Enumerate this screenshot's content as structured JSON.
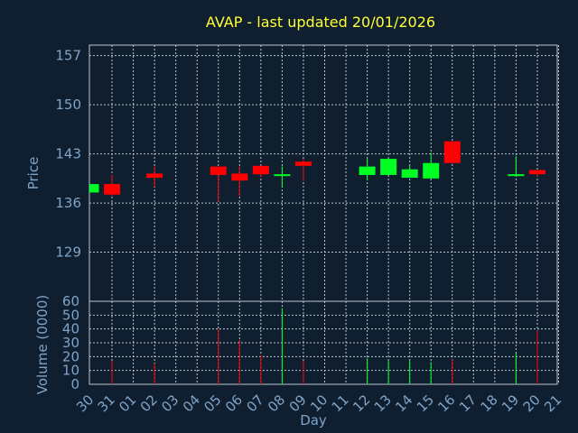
{
  "chart_data": {
    "type": "candlestick",
    "title": "AVAP - last updated 20/01/2026",
    "xlabel": "Day",
    "x_ticks": [
      "30",
      "31",
      "01",
      "02",
      "03",
      "04",
      "05",
      "06",
      "07",
      "08",
      "09",
      "10",
      "11",
      "12",
      "13",
      "14",
      "15",
      "16",
      "17",
      "18",
      "19",
      "20",
      "21"
    ],
    "price_axis": {
      "label": "Price",
      "ticks": [
        129,
        136,
        143,
        150,
        157
      ],
      "ylim": [
        122,
        158.5
      ]
    },
    "volume_axis": {
      "label": "Volume (0000)",
      "ticks": [
        0,
        10,
        20,
        30,
        40,
        50,
        60
      ],
      "ylim": [
        0,
        60
      ]
    },
    "grid": true,
    "colors": {
      "up": "#00ff22",
      "down": "#ff0000",
      "title": "#ffff33",
      "axis_text": "#7fa4c8",
      "background": "#0f1f30"
    },
    "candles": [
      {
        "day": "30",
        "open": 137.5,
        "high": 138.7,
        "low": 137.5,
        "close": 138.7,
        "volume": 0
      },
      {
        "day": "31",
        "open": 138.7,
        "high": 140.0,
        "low": 137.0,
        "close": 137.2,
        "volume": 17
      },
      {
        "day": "02",
        "open": 140.2,
        "high": 141.2,
        "low": 138.3,
        "close": 139.6,
        "volume": 15
      },
      {
        "day": "05",
        "open": 141.2,
        "high": 141.2,
        "low": 136.2,
        "close": 140.0,
        "volume": 40
      },
      {
        "day": "06",
        "open": 140.2,
        "high": 141.2,
        "low": 137.0,
        "close": 139.2,
        "volume": 32
      },
      {
        "day": "07",
        "open": 141.3,
        "high": 141.3,
        "low": 139.7,
        "close": 140.1,
        "volume": 21
      },
      {
        "day": "08",
        "open": 139.9,
        "high": 141.2,
        "low": 138.3,
        "close": 140.1,
        "volume": 55
      },
      {
        "day": "09",
        "open": 141.9,
        "high": 142.3,
        "low": 139.1,
        "close": 141.3,
        "volume": 17
      },
      {
        "day": "12",
        "open": 140.0,
        "high": 142.4,
        "low": 139.2,
        "close": 141.2,
        "volume": 19
      },
      {
        "day": "13",
        "open": 140.0,
        "high": 142.3,
        "low": 140.0,
        "close": 142.3,
        "volume": 17
      },
      {
        "day": "14",
        "open": 139.6,
        "high": 141.3,
        "low": 139.6,
        "close": 140.8,
        "volume": 17
      },
      {
        "day": "15",
        "open": 139.5,
        "high": 143.2,
        "low": 139.5,
        "close": 141.7,
        "volume": 16
      },
      {
        "day": "16",
        "open": 144.8,
        "high": 144.8,
        "low": 141.6,
        "close": 141.7,
        "volume": 18
      },
      {
        "day": "19",
        "open": 139.9,
        "high": 142.7,
        "low": 139.9,
        "close": 140.1,
        "volume": 23
      },
      {
        "day": "20",
        "open": 140.7,
        "high": 140.7,
        "low": 139.8,
        "close": 140.1,
        "volume": 39
      }
    ]
  }
}
